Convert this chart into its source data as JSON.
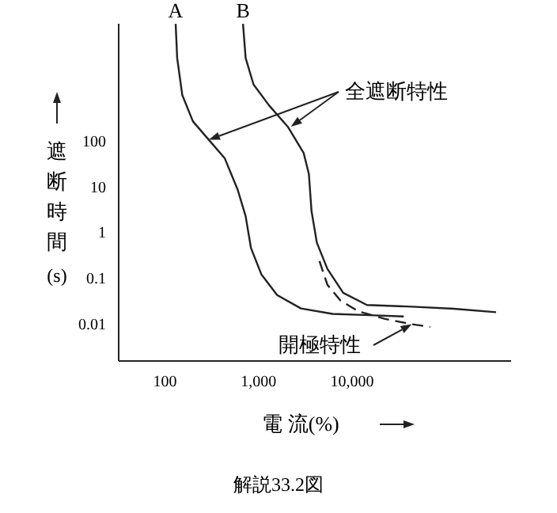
{
  "chart_data": {
    "type": "line",
    "log": "xy",
    "xlabel": "電 流(%)",
    "ylabel": "遮断時間(s)",
    "xlim": [
      32,
      500000
    ],
    "ylim": [
      0.0015,
      34000
    ],
    "xticks": [
      {
        "value": 100,
        "label": "100"
      },
      {
        "value": 1000,
        "label": "1,000"
      },
      {
        "value": 10000,
        "label": "10,000"
      }
    ],
    "yticks": [
      100,
      10,
      1,
      0.1,
      0.01
    ],
    "annotations": [
      {
        "text": "全遮断特性",
        "x": 294,
        "y": 100
      },
      {
        "text": "開極特性",
        "x": 43400,
        "y": 0.0095
      },
      "解説33.2図"
    ],
    "series": [
      {
        "name": "A",
        "color": "#222222",
        "line_style": "solid",
        "x": [
          130,
          135,
          153,
          199,
          294,
          434,
          599,
          728,
          829,
          1070,
          1580,
          2840,
          6190,
          15400,
          35600
        ],
        "values": [
          33800,
          6050,
          950,
          252,
          100,
          40,
          8.1,
          2.15,
          0.44,
          0.117,
          0.041,
          0.021,
          0.016,
          0.015,
          0.014
        ]
      },
      {
        "name": "B",
        "color": "#222222",
        "line_style": "solid",
        "x": [
          682,
          728,
          884,
          1300,
          2050,
          3030,
          3450,
          3680,
          4200,
          5440,
          8020,
          14400,
          43400,
          122000,
          345000
        ],
        "values": [
          33800,
          6050,
          1610,
          558,
          194,
          52,
          18,
          2.8,
          0.57,
          0.153,
          0.046,
          0.025,
          0.023,
          0.0207,
          0.0174
        ]
      },
      {
        "color": "#222222",
        "line_style": "dashed",
        "x": [
          4480,
          5440,
          7520,
          11800,
          22600,
          43400,
          68200
        ],
        "values": [
          0.227,
          0.069,
          0.031,
          0.018,
          0.0124,
          0.0095,
          0.0083
        ]
      }
    ]
  }
}
